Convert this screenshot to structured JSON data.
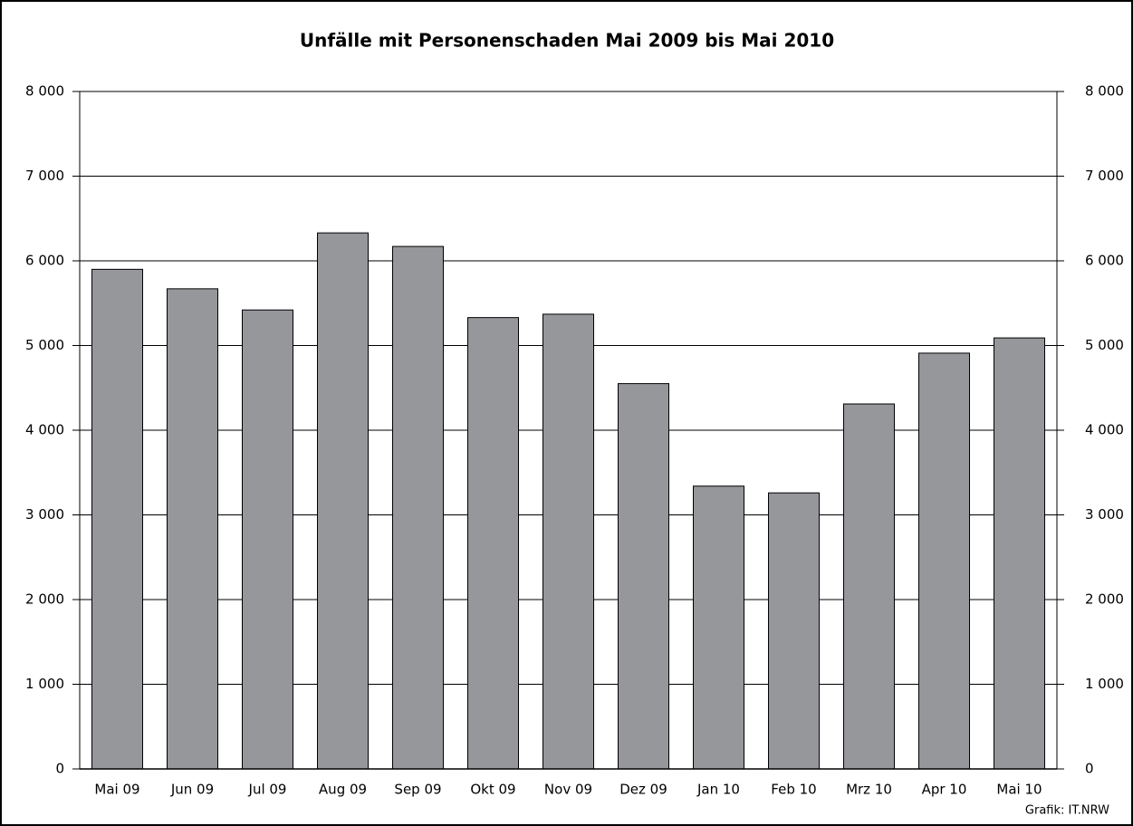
{
  "chart_data": {
    "type": "bar",
    "title": "Unfälle mit Personenschaden Mai 2009 bis Mai 2010",
    "categories": [
      "Mai 09",
      "Jun 09",
      "Jul 09",
      "Aug 09",
      "Sep 09",
      "Okt 09",
      "Nov 09",
      "Dez 09",
      "Jan 10",
      "Feb 10",
      "Mrz 10",
      "Apr 10",
      "Mai 10"
    ],
    "values": [
      5900,
      5670,
      5420,
      6330,
      6170,
      5330,
      5370,
      4550,
      3340,
      3260,
      4310,
      4910,
      5090
    ],
    "color": "#96979b",
    "ylim": [
      0,
      8000
    ],
    "yticks": [
      {
        "value": 0,
        "label": "0"
      },
      {
        "value": 1000,
        "label": "1 000"
      },
      {
        "value": 2000,
        "label": "2 000"
      },
      {
        "value": 3000,
        "label": "3 000"
      },
      {
        "value": 4000,
        "label": "4 000"
      },
      {
        "value": 5000,
        "label": "5 000"
      },
      {
        "value": 6000,
        "label": "6 000"
      },
      {
        "value": 7000,
        "label": "7 000"
      },
      {
        "value": 8000,
        "label": "8 000"
      }
    ],
    "y2lim": [
      0,
      8000
    ],
    "y2ticks": [
      {
        "value": 0,
        "label": "0"
      },
      {
        "value": 1000,
        "label": "1 000"
      },
      {
        "value": 2000,
        "label": "2 000"
      },
      {
        "value": 3000,
        "label": "3 000"
      },
      {
        "value": 4000,
        "label": "4 000"
      },
      {
        "value": 5000,
        "label": "5 000"
      },
      {
        "value": 6000,
        "label": "6 000"
      },
      {
        "value": 7000,
        "label": "7 000"
      },
      {
        "value": 8000,
        "label": "8 000"
      }
    ],
    "grid": true,
    "source": "Grafik: IT.NRW"
  }
}
